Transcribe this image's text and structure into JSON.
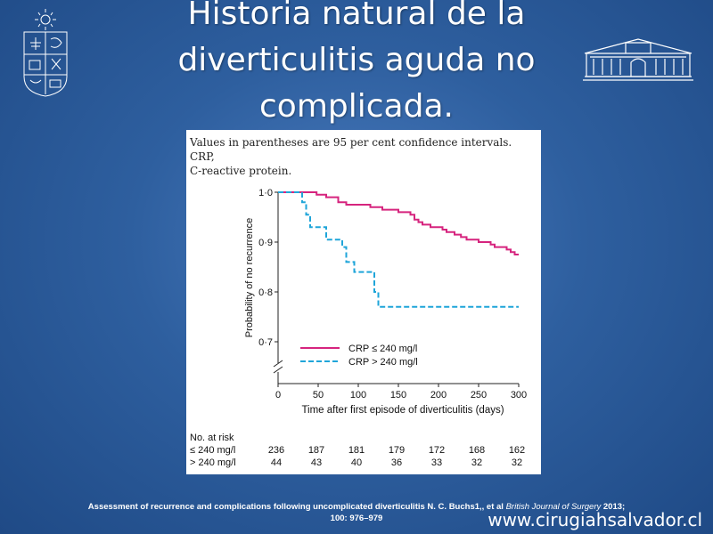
{
  "slide": {
    "title_lines": [
      "Historia natural de la",
      "diverticulitis aguda no",
      "complicada."
    ],
    "website": "www.cirugiahsalvador.cl",
    "citation_bold": "Assessment of recurrence and complications following uncomplicated diverticulitis N. C. Buchs1,, et al ",
    "citation_journal": "British Journal of Surgery",
    "citation_year": " 2013;",
    "citation_line2": "100: 976–979"
  },
  "figure": {
    "caption_lines": [
      "Values in parentheses are 95 per cent confidence intervals. CRP,",
      "C-reactive protein."
    ],
    "risk_table": {
      "header": "No. at risk",
      "rows": [
        {
          "label": "≤ 240 mg/l",
          "values": [
            "236",
            "187",
            "181",
            "179",
            "172",
            "168",
            "162"
          ]
        },
        {
          "label": "> 240 mg/l",
          "values": [
            "44",
            "43",
            "40",
            "36",
            "33",
            "32",
            "32"
          ]
        }
      ]
    }
  },
  "chart_data": {
    "type": "line",
    "xlabel": "Time after first episode of diverticulitis (days)",
    "ylabel": "Probability of no recurrence",
    "x_ticks": [
      "0",
      "50",
      "100",
      "150",
      "200",
      "250",
      "300"
    ],
    "y_ticks": [
      "1·0",
      "0·9",
      "0·8",
      "0·7"
    ],
    "xlim": [
      0,
      300
    ],
    "ylim": [
      0.68,
      1.0
    ],
    "legend_position": "lower-left",
    "series": [
      {
        "name": "CRP ≤ 240 mg/l",
        "color": "#d6247e",
        "style": "solid",
        "step": true,
        "points": [
          [
            0,
            1.0
          ],
          [
            5,
            1.0
          ],
          [
            10,
            1.0
          ],
          [
            20,
            1.0
          ],
          [
            30,
            1.0
          ],
          [
            45,
            1.0
          ],
          [
            48,
            0.995
          ],
          [
            55,
            0.995
          ],
          [
            60,
            0.99
          ],
          [
            70,
            0.99
          ],
          [
            75,
            0.98
          ],
          [
            80,
            0.98
          ],
          [
            85,
            0.975
          ],
          [
            110,
            0.975
          ],
          [
            115,
            0.97
          ],
          [
            125,
            0.97
          ],
          [
            130,
            0.965
          ],
          [
            145,
            0.965
          ],
          [
            150,
            0.96
          ],
          [
            165,
            0.955
          ],
          [
            170,
            0.945
          ],
          [
            175,
            0.94
          ],
          [
            180,
            0.935
          ],
          [
            185,
            0.935
          ],
          [
            190,
            0.93
          ],
          [
            200,
            0.93
          ],
          [
            205,
            0.925
          ],
          [
            210,
            0.92
          ],
          [
            220,
            0.915
          ],
          [
            228,
            0.91
          ],
          [
            235,
            0.905
          ],
          [
            245,
            0.905
          ],
          [
            250,
            0.9
          ],
          [
            262,
            0.9
          ],
          [
            265,
            0.895
          ],
          [
            270,
            0.89
          ],
          [
            285,
            0.885
          ],
          [
            290,
            0.88
          ],
          [
            295,
            0.875
          ],
          [
            300,
            0.875
          ]
        ]
      },
      {
        "name": "CRP > 240 mg/l",
        "color": "#1fa5d9",
        "style": "dashed",
        "step": true,
        "points": [
          [
            0,
            1.0
          ],
          [
            30,
            1.0
          ],
          [
            30,
            0.98
          ],
          [
            35,
            0.98
          ],
          [
            35,
            0.955
          ],
          [
            40,
            0.955
          ],
          [
            40,
            0.93
          ],
          [
            60,
            0.93
          ],
          [
            60,
            0.905
          ],
          [
            80,
            0.905
          ],
          [
            80,
            0.89
          ],
          [
            85,
            0.89
          ],
          [
            85,
            0.86
          ],
          [
            95,
            0.86
          ],
          [
            95,
            0.84
          ],
          [
            120,
            0.84
          ],
          [
            120,
            0.8
          ],
          [
            125,
            0.8
          ],
          [
            125,
            0.77
          ],
          [
            300,
            0.77
          ]
        ]
      }
    ]
  }
}
